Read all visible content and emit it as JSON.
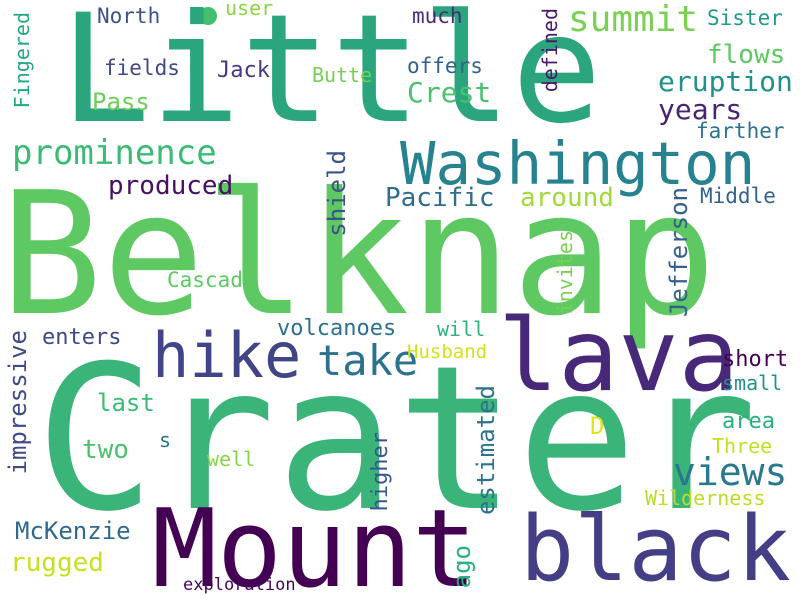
{
  "words": [
    {
      "text": "Little",
      "color": "#2aa57e"
    },
    {
      "text": "Belknap",
      "color": "#5ec962"
    },
    {
      "text": "Crater",
      "color": "#3bb47a"
    },
    {
      "text": "Mount",
      "color": "#440154"
    },
    {
      "text": "black",
      "color": "#433e85"
    },
    {
      "text": "lava",
      "color": "#482878"
    },
    {
      "text": "Washington",
      "color": "#26828e"
    },
    {
      "text": "hike",
      "color": "#414487"
    },
    {
      "text": "prominence",
      "color": "#3bbb75"
    },
    {
      "text": "summit",
      "color": "#7ad151"
    },
    {
      "text": "take",
      "color": "#2c728e"
    },
    {
      "text": "views",
      "color": "#2a788e"
    },
    {
      "text": "eruption",
      "color": "#21918c"
    },
    {
      "text": "years",
      "color": "#482475"
    },
    {
      "text": "Crest",
      "color": "#4ac16d"
    },
    {
      "text": "Pacific",
      "color": "#2f6c8e"
    },
    {
      "text": "around",
      "color": "#9fda3a"
    },
    {
      "text": "produced",
      "color": "#471063"
    },
    {
      "text": "flows",
      "color": "#5cc863"
    },
    {
      "text": "Pass",
      "color": "#6ccd5a"
    },
    {
      "text": "fields",
      "color": "#3e4989"
    },
    {
      "text": "Jack",
      "color": "#443a83"
    },
    {
      "text": "Butte",
      "color": "#75d054"
    },
    {
      "text": "offers",
      "color": "#33638d"
    },
    {
      "text": "North",
      "color": "#3b528b"
    },
    {
      "text": "user",
      "color": "#8bd646"
    },
    {
      "text": "much",
      "color": "#472c7a"
    },
    {
      "text": "Sister",
      "color": "#1f9a8a"
    },
    {
      "text": "farther",
      "color": "#2c738e"
    },
    {
      "text": "Middle",
      "color": "#33638d"
    },
    {
      "text": "volcanoes",
      "color": "#2d708e"
    },
    {
      "text": "will",
      "color": "#2db27d"
    },
    {
      "text": "Cascade",
      "color": "#5ec962"
    },
    {
      "text": "enters",
      "color": "#3f4889"
    },
    {
      "text": "Husband",
      "color": "#d2e21b"
    },
    {
      "text": "short",
      "color": "#440154"
    },
    {
      "text": "small",
      "color": "#20928c"
    },
    {
      "text": "area",
      "color": "#28ae80"
    },
    {
      "text": "Three",
      "color": "#c2df23"
    },
    {
      "text": "last",
      "color": "#3bbb75"
    },
    {
      "text": "two",
      "color": "#4ac16d"
    },
    {
      "text": "well",
      "color": "#86d549"
    },
    {
      "text": "s",
      "color": "#2c728e"
    },
    {
      "text": "D",
      "color": "#e2e418"
    },
    {
      "text": "Wilderness",
      "color": "#bade28"
    },
    {
      "text": "McKenzie",
      "color": "#31688e"
    },
    {
      "text": "rugged",
      "color": "#c8e020"
    },
    {
      "text": "exploration",
      "color": "#450559"
    },
    {
      "text": "Fingered",
      "color": "#22a785"
    },
    {
      "text": "defined",
      "color": "#481769"
    },
    {
      "text": "shield",
      "color": "#3b528b"
    },
    {
      "text": "Jefferson",
      "color": "#355f8d"
    },
    {
      "text": "invites",
      "color": "#7ad151"
    },
    {
      "text": "impressive",
      "color": "#3e4a89"
    },
    {
      "text": "higher",
      "color": "#39568c"
    },
    {
      "text": "estimated",
      "color": "#2c728e"
    },
    {
      "text": "ago",
      "color": "#2ab07f"
    }
  ]
}
